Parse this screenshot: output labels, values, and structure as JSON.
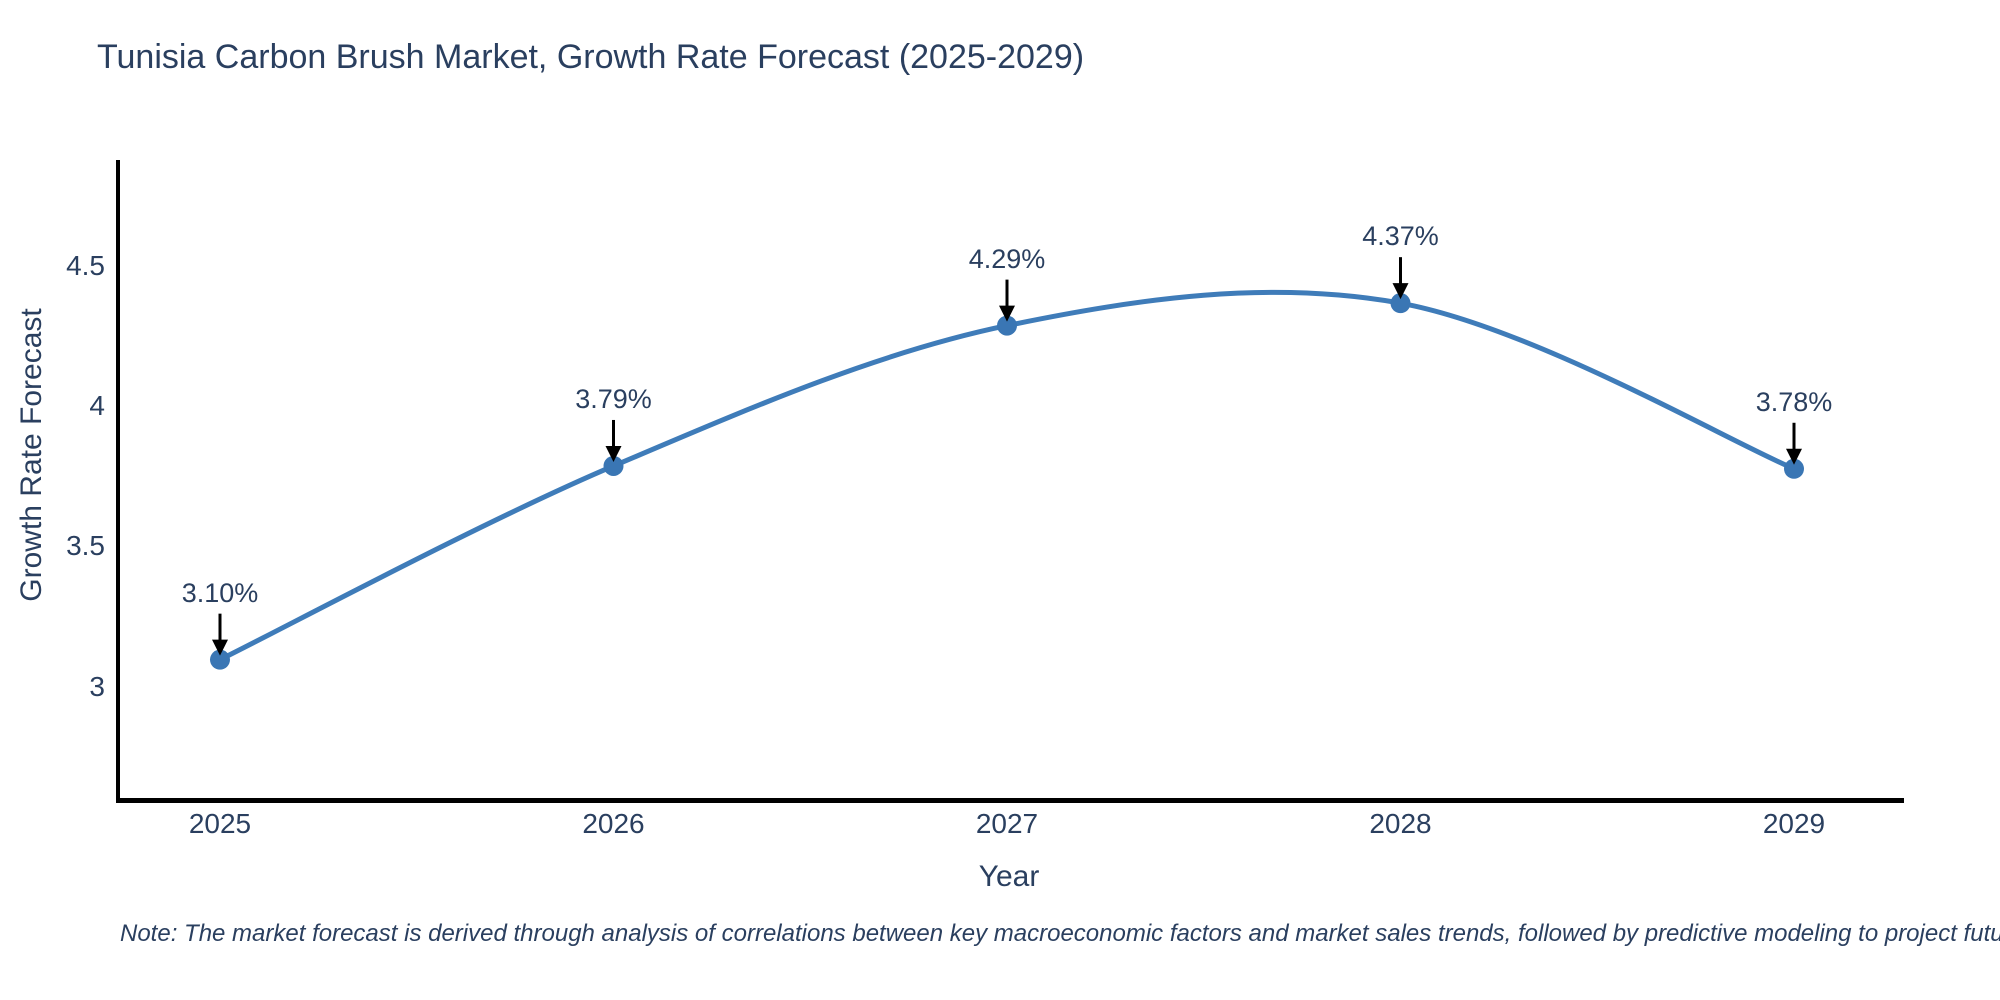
{
  "page": {
    "note": "Note: The market forecast is derived through analysis of correlations between key macroeconomic factors and market sales trends, followed by predictive modeling to project future sales"
  },
  "chart_data": {
    "type": "line",
    "title": "Tunisia Carbon Brush Market, Growth Rate Forecast (2025-2029)",
    "xlabel": "Year",
    "ylabel": "Growth Rate Forecast",
    "categories": [
      "2025",
      "2026",
      "2027",
      "2028",
      "2029"
    ],
    "series": [
      {
        "name": "Growth Rate Forecast",
        "values": [
          3.1,
          3.79,
          4.29,
          4.37,
          3.78
        ]
      }
    ],
    "point_labels": [
      "3.10%",
      "3.79%",
      "4.29%",
      "4.37%",
      "3.78%"
    ],
    "yticks": [
      3,
      3.5,
      4,
      4.5
    ],
    "ylim": [
      2.6,
      4.88
    ],
    "grid": false,
    "legend": "none",
    "smooth": true,
    "annotations_have_arrows": true,
    "colors": {
      "line": "#3f7cb9",
      "marker": "#3a76b4",
      "arrow": "#000000",
      "text": "#2a3f5f",
      "spine": "#000000",
      "background": "#ffffff"
    }
  }
}
